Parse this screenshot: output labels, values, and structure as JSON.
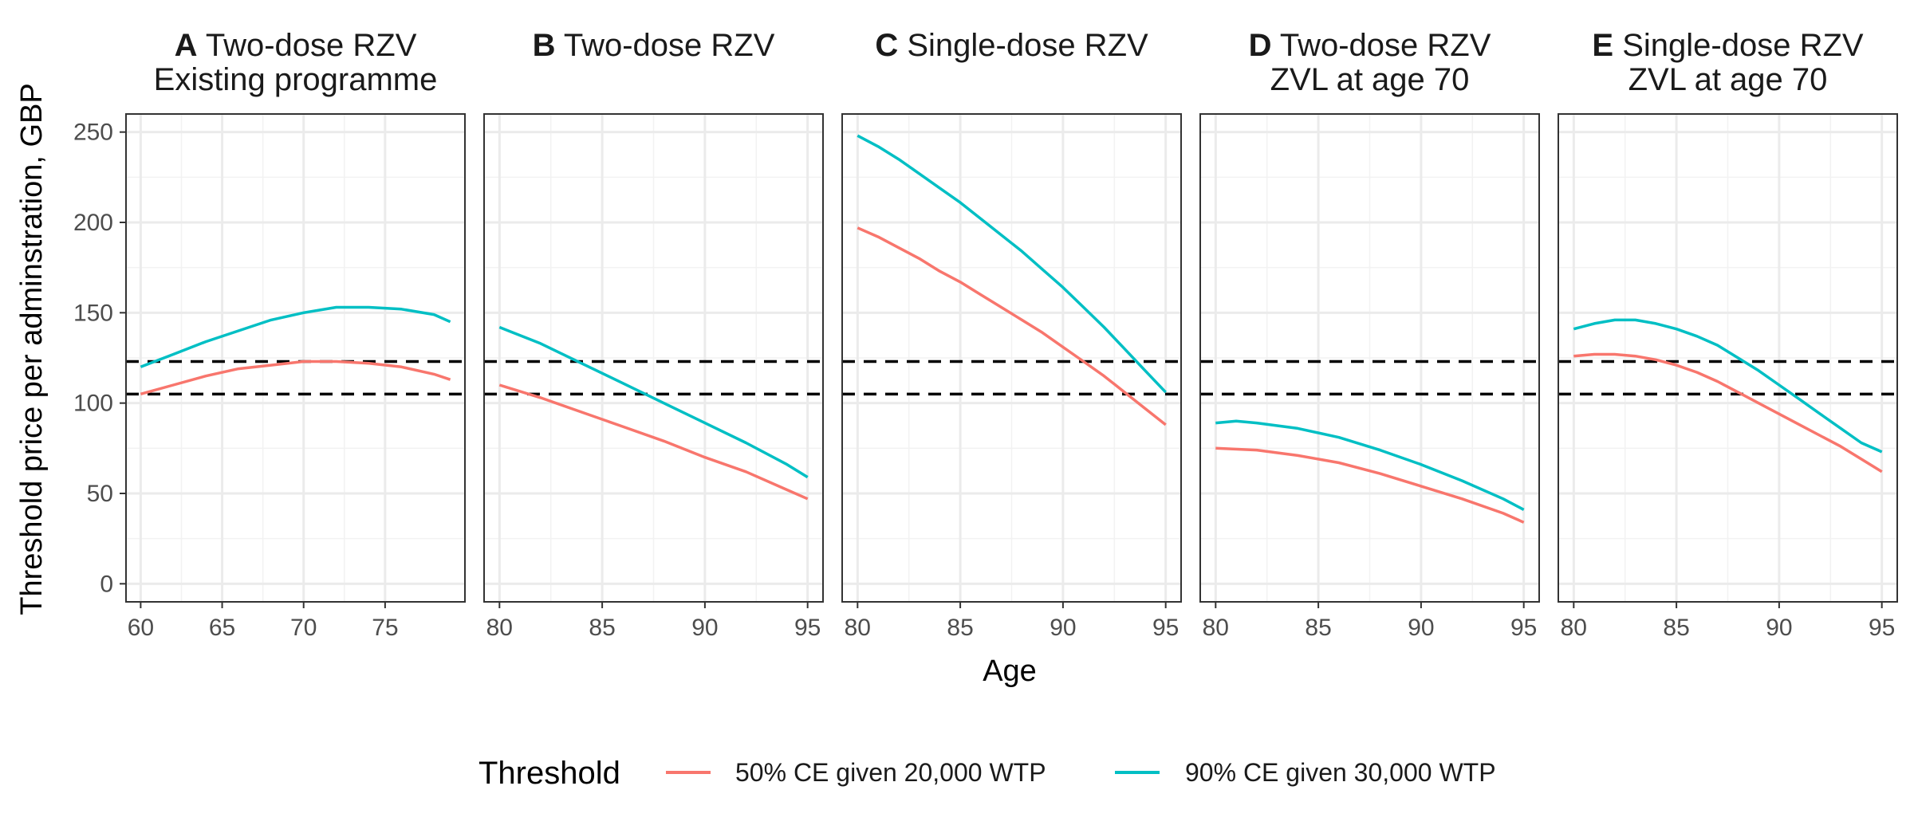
{
  "chart_data": {
    "type": "line",
    "xlabel": "Age",
    "ylabel": "Threshold price per adminstration, GBP",
    "ylim": [
      -10,
      260
    ],
    "yticks": [
      0,
      50,
      100,
      150,
      200,
      250
    ],
    "grid": true,
    "legend": {
      "title": "Threshold",
      "placement": "bottom",
      "entries": [
        {
          "label": "50% CE given 20,000 WTP",
          "color": "#F8766D"
        },
        {
          "label": "90% CE given 30,000 WTP",
          "color": "#00BFC4"
        }
      ]
    },
    "reference_lines": [
      105,
      123
    ],
    "panels": [
      {
        "tag": "A",
        "title_rest": " Two-dose RZV",
        "subtitle": "Existing programme",
        "xlim": [
          59.1,
          79.9
        ],
        "xticks": [
          60,
          65,
          70,
          75
        ],
        "series": [
          {
            "name": "50% CE given 20,000 WTP",
            "x": [
              60,
              62,
              64,
              66,
              68,
              70,
              72,
              74,
              76,
              78,
              79
            ],
            "y": [
              105,
              110,
              115,
              119,
              121,
              123,
              123,
              122,
              120,
              116,
              113
            ]
          },
          {
            "name": "90% CE given 30,000 WTP",
            "x": [
              60,
              62,
              64,
              66,
              68,
              70,
              72,
              74,
              76,
              78,
              79
            ],
            "y": [
              120,
              127,
              134,
              140,
              146,
              150,
              153,
              153,
              152,
              149,
              145
            ]
          }
        ]
      },
      {
        "tag": "B",
        "title_rest": " Two-dose RZV",
        "subtitle": "",
        "xlim": [
          79.25,
          95.75
        ],
        "xticks": [
          80,
          85,
          90,
          95
        ],
        "series": [
          {
            "name": "50% CE given 20,000 WTP",
            "x": [
              80,
              82,
              84,
              86,
              88,
              90,
              92,
              94,
              95
            ],
            "y": [
              110,
              103,
              95,
              87,
              79,
              70,
              62,
              52,
              47
            ]
          },
          {
            "name": "90% CE given 30,000 WTP",
            "x": [
              80,
              82,
              84,
              86,
              88,
              90,
              92,
              94,
              95
            ],
            "y": [
              142,
              133,
              122,
              111,
              100,
              89,
              78,
              66,
              59
            ]
          }
        ]
      },
      {
        "tag": "C",
        "title_rest": " Single-dose RZV",
        "subtitle": "",
        "xlim": [
          79.25,
          95.75
        ],
        "xticks": [
          80,
          85,
          90,
          95
        ],
        "series": [
          {
            "name": "50% CE given 20,000 WTP",
            "x": [
              80,
              81,
              82,
              83,
              84,
              85,
              86,
              87,
              88,
              89,
              90,
              91,
              92,
              93,
              94,
              95
            ],
            "y": [
              197,
              192,
              186,
              180,
              173,
              167,
              160,
              153,
              146,
              139,
              131,
              123,
              115,
              106,
              97,
              88
            ]
          },
          {
            "name": "90% CE given 30,000 WTP",
            "x": [
              80,
              81,
              82,
              83,
              84,
              85,
              86,
              87,
              88,
              89,
              90,
              91,
              92,
              93,
              94,
              95
            ],
            "y": [
              248,
              242,
              235,
              227,
              219,
              211,
              202,
              193,
              184,
              174,
              164,
              153,
              142,
              130,
              118,
              106
            ]
          }
        ]
      },
      {
        "tag": "D",
        "title_rest": " Two-dose RZV",
        "subtitle": "ZVL at age 70",
        "xlim": [
          79.25,
          95.75
        ],
        "xticks": [
          80,
          85,
          90,
          95
        ],
        "series": [
          {
            "name": "50% CE given 20,000 WTP",
            "x": [
              80,
              82,
              84,
              86,
              88,
              90,
              92,
              94,
              95
            ],
            "y": [
              75,
              74,
              71,
              67,
              61,
              54,
              47,
              39,
              34
            ]
          },
          {
            "name": "90% CE given 30,000 WTP",
            "x": [
              80,
              81,
              82,
              84,
              86,
              88,
              90,
              92,
              94,
              95
            ],
            "y": [
              89,
              90,
              89,
              86,
              81,
              74,
              66,
              57,
              47,
              41
            ]
          }
        ]
      },
      {
        "tag": "E",
        "title_rest": " Single-dose RZV",
        "subtitle": "ZVL at age 70",
        "xlim": [
          79.25,
          95.75
        ],
        "xticks": [
          80,
          85,
          90,
          95
        ],
        "series": [
          {
            "name": "50% CE given 20,000 WTP",
            "x": [
              80,
              81,
              82,
              83,
              84,
              85,
              86,
              87,
              88,
              89,
              90,
              91,
              92,
              93,
              94,
              95
            ],
            "y": [
              126,
              127,
              127,
              126,
              124,
              121,
              117,
              112,
              106,
              100,
              94,
              88,
              82,
              76,
              69,
              62
            ]
          },
          {
            "name": "90% CE given 30,000 WTP",
            "x": [
              80,
              81,
              82,
              83,
              84,
              85,
              86,
              87,
              88,
              89,
              90,
              91,
              92,
              93,
              94,
              95
            ],
            "y": [
              141,
              144,
              146,
              146,
              144,
              141,
              137,
              132,
              125,
              118,
              110,
              102,
              94,
              86,
              78,
              73
            ]
          }
        ]
      }
    ]
  }
}
